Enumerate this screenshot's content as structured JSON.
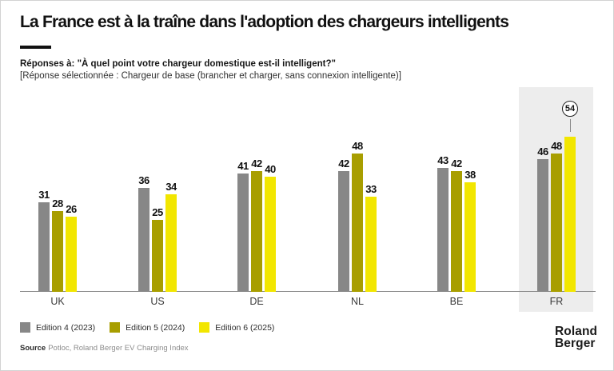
{
  "header": {
    "title": "La France est à la traîne dans l'adoption des chargeurs intelligents",
    "subtitle_question": "Réponses à: \"À quel point votre chargeur domestique est-il intelligent?\"",
    "subtitle_detail": "[Réponse sélectionnée : Chargeur de base (brancher et charger, sans connexion intelligente)]"
  },
  "chart_data": {
    "type": "bar",
    "categories": [
      "UK",
      "US",
      "DE",
      "NL",
      "BE",
      "FR"
    ],
    "series": [
      {
        "name": "Edition 4 (2023)",
        "color": "#878787",
        "values": [
          31,
          36,
          41,
          42,
          43,
          46
        ]
      },
      {
        "name": "Edition 5 (2024)",
        "color": "#a89e00",
        "values": [
          28,
          25,
          42,
          48,
          42,
          48
        ]
      },
      {
        "name": "Edition 6 (2025)",
        "color": "#f2e600",
        "values": [
          26,
          34,
          40,
          33,
          38,
          54
        ]
      }
    ],
    "ylim": [
      0,
      60
    ],
    "grid": false,
    "y_axis_shown": false,
    "legend_position": "bottom-left",
    "highlighted_category": "FR",
    "annotation": {
      "category": "FR",
      "series": "Edition 6 (2025)",
      "value": 54,
      "style": "circled"
    }
  },
  "colors": {
    "highlight_band": "#ededed",
    "axis_line": "#8a8a8a",
    "accent_bar": "#111111"
  },
  "footer": {
    "source_label": "Source",
    "source_text": "Potloc, Roland Berger EV Charging Index",
    "logo_line1": "Roland",
    "logo_line2": "Berger"
  }
}
